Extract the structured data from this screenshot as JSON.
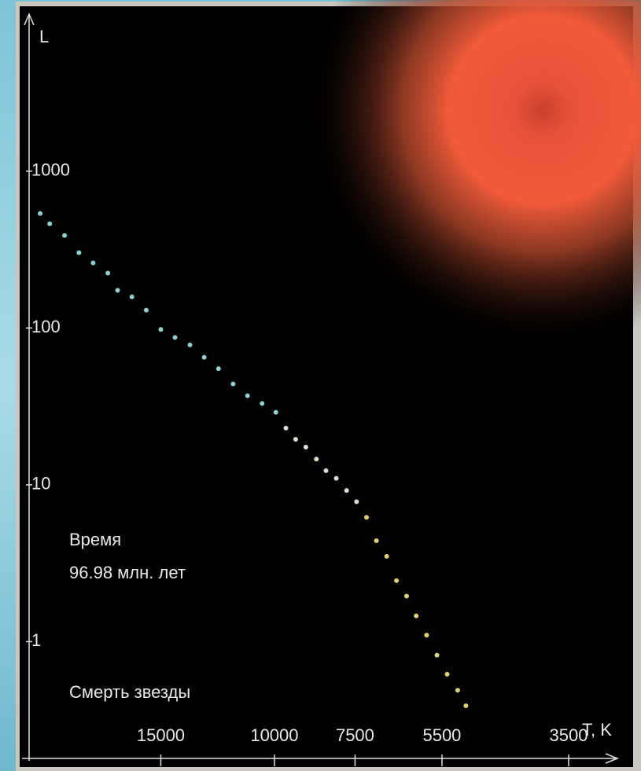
{
  "chart_data": {
    "type": "scatter",
    "y_label": "L",
    "x_label": "T, K",
    "annotations": [
      "Время",
      "96.98 млн. лет",
      "Смерть звезды"
    ],
    "x": [
      23070,
      22300,
      21150,
      20090,
      19100,
      18120,
      17500,
      16630,
      15800,
      15000,
      14260,
      13520,
      12850,
      12210,
      11590,
      11010,
      10450,
      9950,
      9600,
      9270,
      8940,
      8610,
      8320,
      8020,
      7730,
      7460,
      7200,
      6950,
      6700,
      6470,
      6240,
      6030,
      5810,
      5600,
      5400,
      5200,
      5050
    ],
    "values": [
      537,
      462,
      389,
      302,
      260,
      224,
      174,
      158,
      130,
      98,
      87,
      78,
      65,
      55,
      44,
      37,
      33,
      29,
      23,
      19.5,
      17.4,
      14.6,
      12.3,
      11,
      9.2,
      7.8,
      6.2,
      4.4,
      3.5,
      2.45,
      1.95,
      1.46,
      1.1,
      0.82,
      0.62,
      0.49,
      0.39
    ],
    "colors": [
      "#8fcfd0",
      "#8fcfd0",
      "#8fcfd0",
      "#8fcfd0",
      "#8fcfd0",
      "#8fcfd0",
      "#8fcfd0",
      "#8fcfd0",
      "#8fcfd0",
      "#8fcfd0",
      "#8fcfd0",
      "#8fcfd0",
      "#8fcfd0",
      "#8fcfd0",
      "#8fcfd0",
      "#8fcfd0",
      "#8fcfd0",
      "#8fcfd0",
      "#dcdccc",
      "#dcdccc",
      "#dcdccc",
      "#dcdccc",
      "#dcdccc",
      "#dcdccc",
      "#dcdccc",
      "#dcdccc",
      "#e0d070",
      "#e0d070",
      "#e0d070",
      "#e0d070",
      "#e0d070",
      "#e0d070",
      "#e0d070",
      "#e0d070",
      "#e0d070",
      "#e0d070",
      "#e0d070"
    ],
    "xscale": "log",
    "yscale": "log",
    "xlim": [
      24000,
      2900
    ],
    "ylim": [
      0.18,
      11000
    ],
    "xticks": [
      15000,
      10000,
      7500,
      5500,
      3500
    ],
    "yticks": [
      1,
      10,
      100,
      1000
    ]
  }
}
